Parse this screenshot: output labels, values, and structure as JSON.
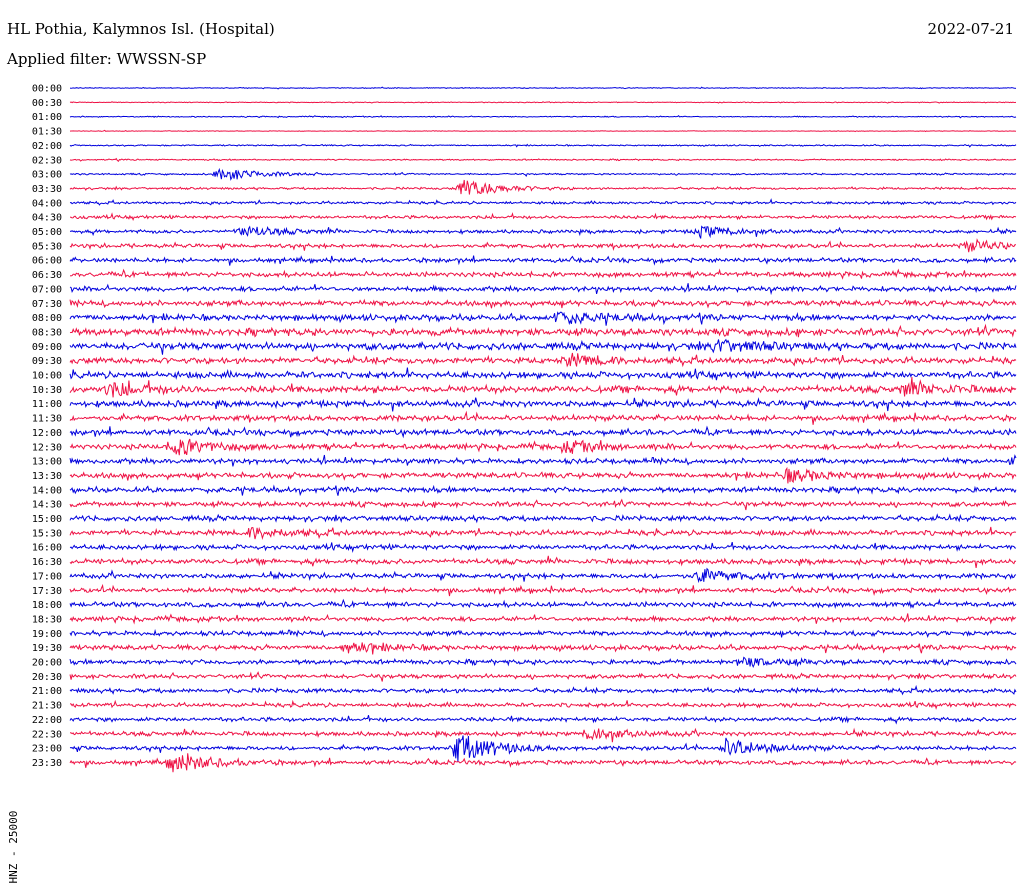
{
  "header": {
    "station": "HL Pothia, Kalymnos Isl. (Hospital)",
    "date": "2022-07-21",
    "filter": "Applied filter: WWSSN-SP"
  },
  "chart_data": {
    "type": "line",
    "title": "HL Pothia, Kalymnos Isl. (Hospital)",
    "ylabel": "HNZ - 25000",
    "row_labels": [
      "00:00",
      "00:30",
      "01:00",
      "01:30",
      "02:00",
      "02:30",
      "03:00",
      "03:30",
      "04:00",
      "04:30",
      "05:00",
      "05:30",
      "06:00",
      "06:30",
      "07:00",
      "07:30",
      "08:00",
      "08:30",
      "09:00",
      "09:30",
      "10:00",
      "10:30",
      "11:00",
      "11:30",
      "12:00",
      "12:30",
      "13:00",
      "13:30",
      "14:00",
      "14:30",
      "15:00",
      "15:30",
      "16:00",
      "16:30",
      "17:00",
      "17:30",
      "18:00",
      "18:30",
      "19:00",
      "19:30",
      "20:00",
      "20:30",
      "21:00",
      "21:30",
      "22:00",
      "22:30",
      "23:00",
      "23:30"
    ],
    "colors": {
      "even_rows": "#0000dd",
      "odd_rows": "#ee1144"
    },
    "noise_level": [
      0.3,
      0.3,
      0.4,
      0.2,
      0.5,
      0.5,
      0.6,
      0.8,
      1.0,
      1.2,
      1.3,
      1.5,
      1.6,
      1.8,
      1.8,
      2.0,
      2.2,
      2.6,
      2.6,
      2.3,
      2.4,
      2.5,
      2.3,
      2.0,
      2.1,
      2.0,
      1.9,
      2.0,
      1.9,
      1.8,
      1.9,
      1.9,
      1.8,
      1.9,
      1.8,
      1.7,
      1.8,
      1.7,
      1.7,
      1.8,
      1.7,
      1.6,
      1.6,
      1.5,
      1.5,
      1.6,
      1.5,
      1.6
    ],
    "events": [
      {
        "row": "03:00",
        "minute": 4.8,
        "amp": 7
      },
      {
        "row": "03:30",
        "minute": 12.5,
        "amp": 9
      },
      {
        "row": "05:00",
        "minute": 5.5,
        "amp": 5
      },
      {
        "row": "05:00",
        "minute": 20.0,
        "amp": 5
      },
      {
        "row": "05:30",
        "minute": 28.5,
        "amp": 5
      },
      {
        "row": "08:00",
        "minute": 15.5,
        "amp": 6
      },
      {
        "row": "09:00",
        "minute": 20.5,
        "amp": 6
      },
      {
        "row": "09:30",
        "minute": 15.8,
        "amp": 5
      },
      {
        "row": "10:30",
        "minute": 1.3,
        "amp": 6
      },
      {
        "row": "10:30",
        "minute": 26.5,
        "amp": 6
      },
      {
        "row": "12:30",
        "minute": 3.3,
        "amp": 8
      },
      {
        "row": "12:30",
        "minute": 15.8,
        "amp": 5
      },
      {
        "row": "13:00",
        "minute": 30.0,
        "amp": 5
      },
      {
        "row": "13:30",
        "minute": 22.8,
        "amp": 6
      },
      {
        "row": "15:30",
        "minute": 5.8,
        "amp": 5
      },
      {
        "row": "17:00",
        "minute": 20.0,
        "amp": 6
      },
      {
        "row": "19:30",
        "minute": 8.8,
        "amp": 5
      },
      {
        "row": "20:00",
        "minute": 21.3,
        "amp": 4
      },
      {
        "row": "22:30",
        "minute": 16.5,
        "amp": 6
      },
      {
        "row": "23:00",
        "minute": 12.3,
        "amp": 14
      },
      {
        "row": "23:00",
        "minute": 20.8,
        "amp": 9
      },
      {
        "row": "23:30",
        "minute": 3.3,
        "amp": 9
      }
    ]
  }
}
